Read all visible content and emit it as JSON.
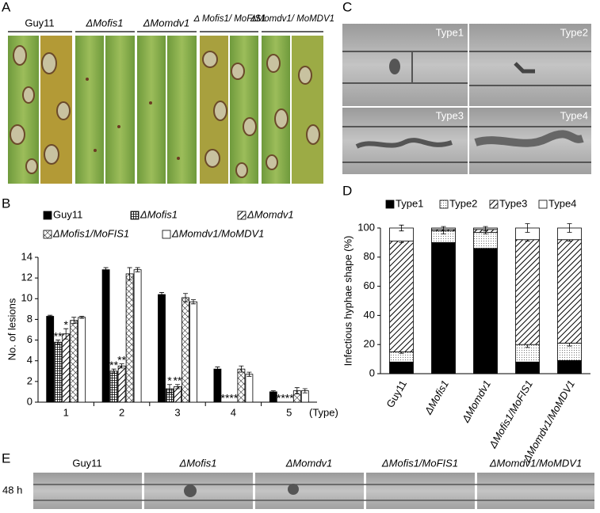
{
  "panel_letters": [
    "A",
    "B",
    "C",
    "D",
    "E"
  ],
  "panel_a": {
    "strains": [
      "Guy11",
      "ΔMofis1",
      "ΔMomdv1",
      "Δ Mofis1/ MoFIS1",
      "ΔMomdv1/ MoMDV1"
    ]
  },
  "panel_c": {
    "types": [
      "Type1",
      "Type2",
      "Type3",
      "Type4"
    ]
  },
  "panel_e": {
    "time": "48 h",
    "strains": [
      "Guy11",
      "ΔMofis1",
      "ΔMomdv1",
      "ΔMofis1/MoFIS1",
      "ΔMomdv1/MoMDV1"
    ]
  },
  "chart_data": [
    {
      "type": "bar",
      "ylabel": "No. of lesions",
      "xlabel": "(Type)",
      "categories": [
        "1",
        "2",
        "3",
        "4",
        "5"
      ],
      "ylim": [
        0,
        14
      ],
      "yticks": [
        0,
        2,
        4,
        6,
        8,
        10,
        12,
        14
      ],
      "series": [
        {
          "name": "Guy11",
          "color": "#000000",
          "fill_pattern": "solid",
          "values": [
            8.3,
            12.8,
            10.4,
            3.2,
            1.0
          ],
          "errors": [
            0.1,
            0.2,
            0.2,
            0.2,
            0.1
          ]
        },
        {
          "name": "ΔMofis1",
          "color": "#000000",
          "fill_pattern": "grid",
          "values": [
            5.8,
            3.0,
            1.3,
            0,
            0
          ],
          "errors": [
            0.2,
            0.2,
            0.4,
            0,
            0
          ]
        },
        {
          "name": "ΔMomdv1",
          "color": "#000000",
          "fill_pattern": "diagonal",
          "values": [
            6.6,
            3.5,
            1.5,
            0,
            0
          ],
          "errors": [
            0.5,
            0.2,
            0.2,
            0,
            0
          ]
        },
        {
          "name": "ΔMofis1/MoFIS1",
          "color": "#000000",
          "fill_pattern": "crosshatch",
          "values": [
            7.9,
            12.4,
            10.1,
            3.2,
            1.1
          ],
          "errors": [
            0.3,
            0.6,
            0.4,
            0.3,
            0.3
          ]
        },
        {
          "name": "ΔMomdv1/MoMDV1",
          "color": "#ffffff",
          "fill_pattern": "none",
          "values": [
            8.2,
            12.8,
            9.7,
            2.7,
            1.1
          ],
          "errors": [
            0.1,
            0.2,
            0.2,
            0.2,
            0.2
          ]
        }
      ],
      "annotations": [
        {
          "text": "**",
          "category": "1",
          "series": [
            "ΔMofis1"
          ]
        },
        {
          "text": "*",
          "category": "1",
          "series": [
            "ΔMomdv1"
          ]
        },
        {
          "text": "**",
          "category": "2",
          "series": [
            "ΔMofis1"
          ]
        },
        {
          "text": "**",
          "category": "2",
          "series": [
            "ΔMomdv1"
          ]
        },
        {
          "text": "*",
          "category": "3",
          "series": [
            "ΔMofis1"
          ]
        },
        {
          "text": "**",
          "category": "3",
          "series": [
            "ΔMomdv1"
          ]
        },
        {
          "text": "****",
          "category": "4",
          "series": [
            "ΔMofis1",
            "ΔMomdv1"
          ]
        },
        {
          "text": "****",
          "category": "5",
          "series": [
            "ΔMofis1",
            "ΔMomdv1"
          ]
        }
      ]
    },
    {
      "type": "stacked_bar",
      "ylabel": "Infectious hyphae shape (%)",
      "categories": [
        "Guy11",
        "ΔMofis1",
        "ΔMomdv1",
        "ΔMofis1/MoFIS1",
        "ΔMomdv1/MoMDV1"
      ],
      "ylim": [
        0,
        100
      ],
      "yticks": [
        0,
        20,
        40,
        60,
        80,
        100
      ],
      "series": [
        {
          "name": "Type1",
          "color": "#000000",
          "fill_pattern": "solid",
          "values": [
            8,
            90,
            86,
            8,
            9
          ],
          "errors": [
            1,
            2,
            3,
            3,
            2
          ]
        },
        {
          "name": "Type2",
          "color": "#ffffff",
          "fill_pattern": "dots",
          "values": [
            7,
            8,
            11,
            12,
            12
          ],
          "errors": [
            1,
            2,
            1,
            2,
            2
          ]
        },
        {
          "name": "Type3",
          "color": "#000000",
          "fill_pattern": "diagonal",
          "values": [
            76,
            1,
            2,
            72,
            71
          ],
          "errors": [
            1,
            1,
            1,
            1,
            1
          ]
        },
        {
          "name": "Type4",
          "color": "#ffffff",
          "fill_pattern": "none",
          "values": [
            9,
            1,
            1,
            8,
            8
          ],
          "errors": [
            2,
            1,
            1,
            3,
            3
          ]
        }
      ]
    }
  ]
}
